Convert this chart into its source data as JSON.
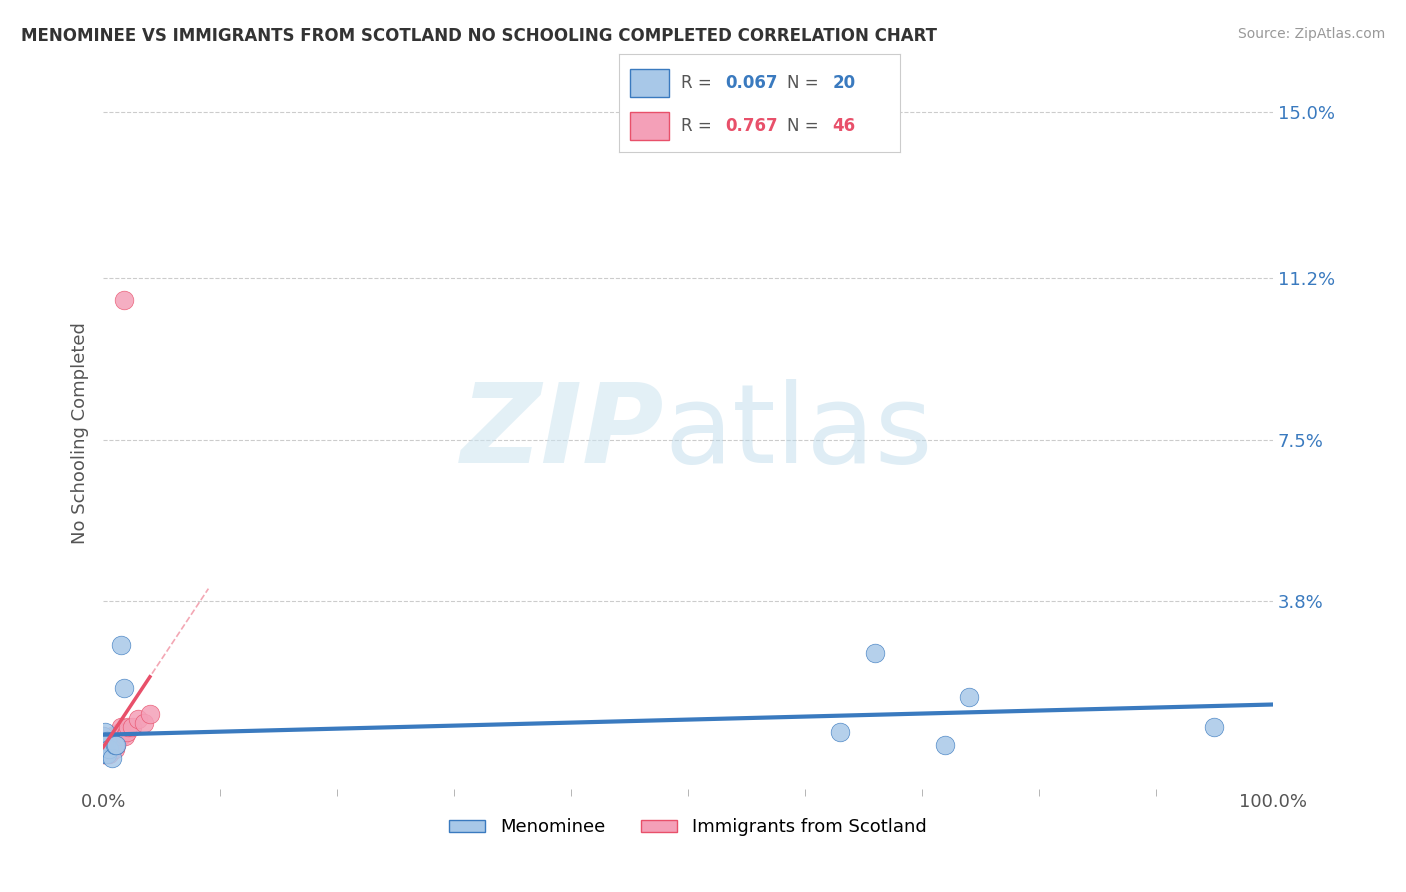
{
  "title": "MENOMINEE VS IMMIGRANTS FROM SCOTLAND NO SCHOOLING COMPLETED CORRELATION CHART",
  "source": "Source: ZipAtlas.com",
  "ylabel": "No Schooling Completed",
  "xlim": [
    0,
    1.0
  ],
  "ylim": [
    -0.005,
    0.158
  ],
  "xticklabels": [
    "0.0%",
    "100.0%"
  ],
  "ytick_positions": [
    0.038,
    0.075,
    0.112,
    0.15
  ],
  "ytick_labels": [
    "3.8%",
    "7.5%",
    "11.2%",
    "15.0%"
  ],
  "menominee_color": "#a8c8e8",
  "scotland_color": "#f4a0b8",
  "menominee_line_color": "#3a7abf",
  "scotland_line_color": "#e8506a",
  "menominee_x": [
    0.0,
    0.0,
    0.0,
    0.001,
    0.001,
    0.002,
    0.002,
    0.003,
    0.003,
    0.005,
    0.008,
    0.01,
    0.011,
    0.015,
    0.018,
    0.63,
    0.66,
    0.72,
    0.74,
    0.95
  ],
  "menominee_y": [
    0.005,
    0.006,
    0.007,
    0.004,
    0.005,
    0.003,
    0.008,
    0.003,
    0.006,
    0.004,
    0.002,
    0.005,
    0.005,
    0.028,
    0.018,
    0.008,
    0.026,
    0.005,
    0.016,
    0.009
  ],
  "scotland_x": [
    0.0,
    0.0,
    0.0,
    0.0,
    0.0,
    0.0,
    0.0,
    0.0,
    0.0,
    0.001,
    0.001,
    0.001,
    0.001,
    0.002,
    0.002,
    0.002,
    0.003,
    0.003,
    0.003,
    0.004,
    0.004,
    0.005,
    0.005,
    0.006,
    0.006,
    0.007,
    0.008,
    0.008,
    0.009,
    0.01,
    0.01,
    0.011,
    0.012,
    0.013,
    0.014,
    0.015,
    0.015,
    0.016,
    0.018,
    0.019,
    0.02,
    0.021,
    0.025,
    0.03,
    0.035,
    0.04
  ],
  "scotland_y": [
    0.003,
    0.004,
    0.004,
    0.005,
    0.005,
    0.005,
    0.006,
    0.006,
    0.007,
    0.003,
    0.004,
    0.005,
    0.006,
    0.003,
    0.004,
    0.005,
    0.003,
    0.004,
    0.006,
    0.003,
    0.005,
    0.003,
    0.004,
    0.004,
    0.006,
    0.005,
    0.004,
    0.007,
    0.006,
    0.004,
    0.007,
    0.005,
    0.006,
    0.007,
    0.008,
    0.007,
    0.009,
    0.008,
    0.107,
    0.007,
    0.008,
    0.009,
    0.009,
    0.011,
    0.01,
    0.012
  ],
  "legend_r1": "0.067",
  "legend_n1": "20",
  "legend_r2": "0.767",
  "legend_n2": "46",
  "legend_label1": "Menominee",
  "legend_label2": "Immigrants from Scotland"
}
